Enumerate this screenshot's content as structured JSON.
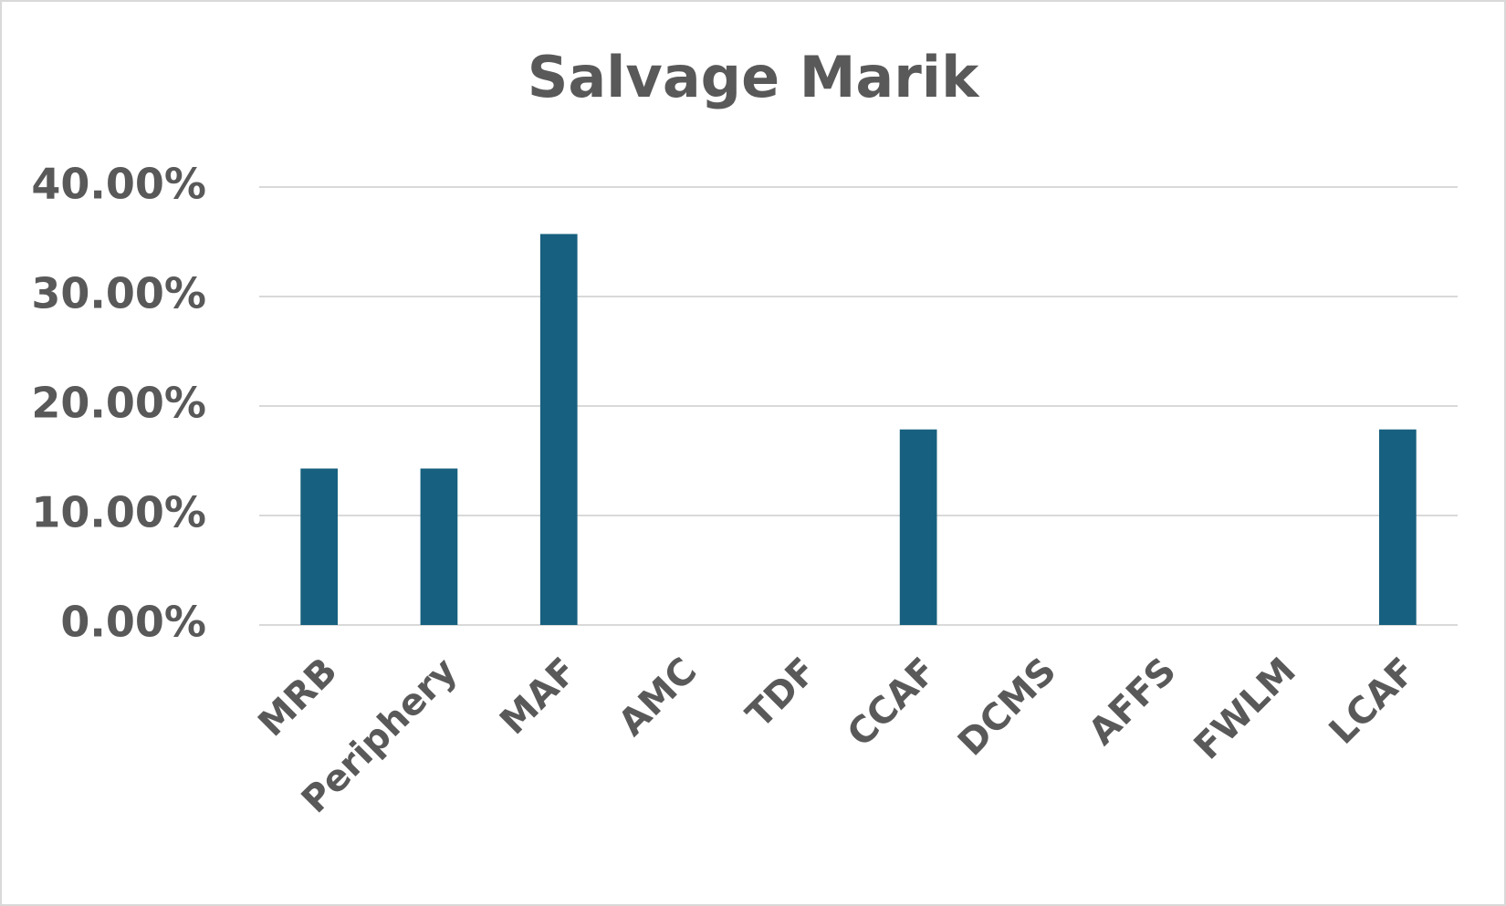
{
  "chart_data": {
    "type": "bar",
    "title": "Salvage Marik",
    "categories": [
      "MRB",
      "Periphery",
      "MAF",
      "AMC",
      "TDF",
      "CCAF",
      "DCMS",
      "AFFS",
      "FWLM",
      "LCAF"
    ],
    "values": [
      14.29,
      14.29,
      35.71,
      0,
      0,
      17.86,
      0,
      0,
      0,
      17.86
    ],
    "color": "#17607f",
    "ylim": [
      0,
      40
    ],
    "yticks": [
      {
        "value": 0,
        "label": "0.00%"
      },
      {
        "value": 10,
        "label": "10.00%"
      },
      {
        "value": 20,
        "label": "20.00%"
      },
      {
        "value": 30,
        "label": "30.00%"
      },
      {
        "value": 40,
        "label": "40.00%"
      }
    ],
    "grid": true
  }
}
